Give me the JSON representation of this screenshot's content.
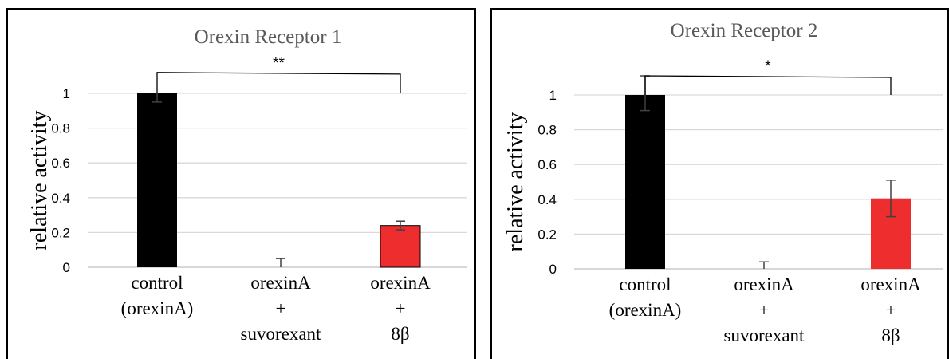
{
  "colors": {
    "control": "#000000",
    "suvorexant": "#000000",
    "beta8": "#ee2e2e",
    "grid": "#d9d9d9",
    "title": "#595959"
  },
  "chart_data": [
    {
      "type": "bar",
      "title": "Orexin  Receptor 1",
      "ylabel": "relative activity",
      "ylim": [
        0,
        1
      ],
      "yticks": [
        "0",
        "0.2",
        "0.4",
        "0.6",
        "0.8",
        "1"
      ],
      "categories": [
        [
          "control",
          "(orexinA)"
        ],
        [
          "orexinA",
          "+",
          "suvorexant"
        ],
        [
          "orexinA",
          "+",
          "8β"
        ]
      ],
      "values": [
        1.0,
        0.0,
        0.24
      ],
      "error_plus": [
        0.0,
        0.05,
        0.025
      ],
      "error_minus": [
        0.05,
        0.0,
        0.025
      ],
      "significance": {
        "label": "**",
        "from": 0,
        "to": 2,
        "level": 1.12
      },
      "grid": true
    },
    {
      "type": "bar",
      "title": "Orexin  Receptor 2",
      "ylabel": "relative activity",
      "ylim": [
        0,
        1
      ],
      "yticks": [
        "0",
        "0.2",
        "0.4",
        "0.6",
        "0.8",
        "1"
      ],
      "categories": [
        [
          "control",
          "(orexinA)"
        ],
        [
          "orexinA",
          "+",
          "suvorexant"
        ],
        [
          "orexinA",
          "+",
          "8β"
        ]
      ],
      "values": [
        1.0,
        0.0,
        0.405
      ],
      "error_plus": [
        0.11,
        0.04,
        0.105
      ],
      "error_minus": [
        0.09,
        0.0,
        0.105
      ],
      "significance": {
        "label": "*",
        "from": 0,
        "to": 2,
        "level": 1.11
      },
      "grid": true
    }
  ]
}
